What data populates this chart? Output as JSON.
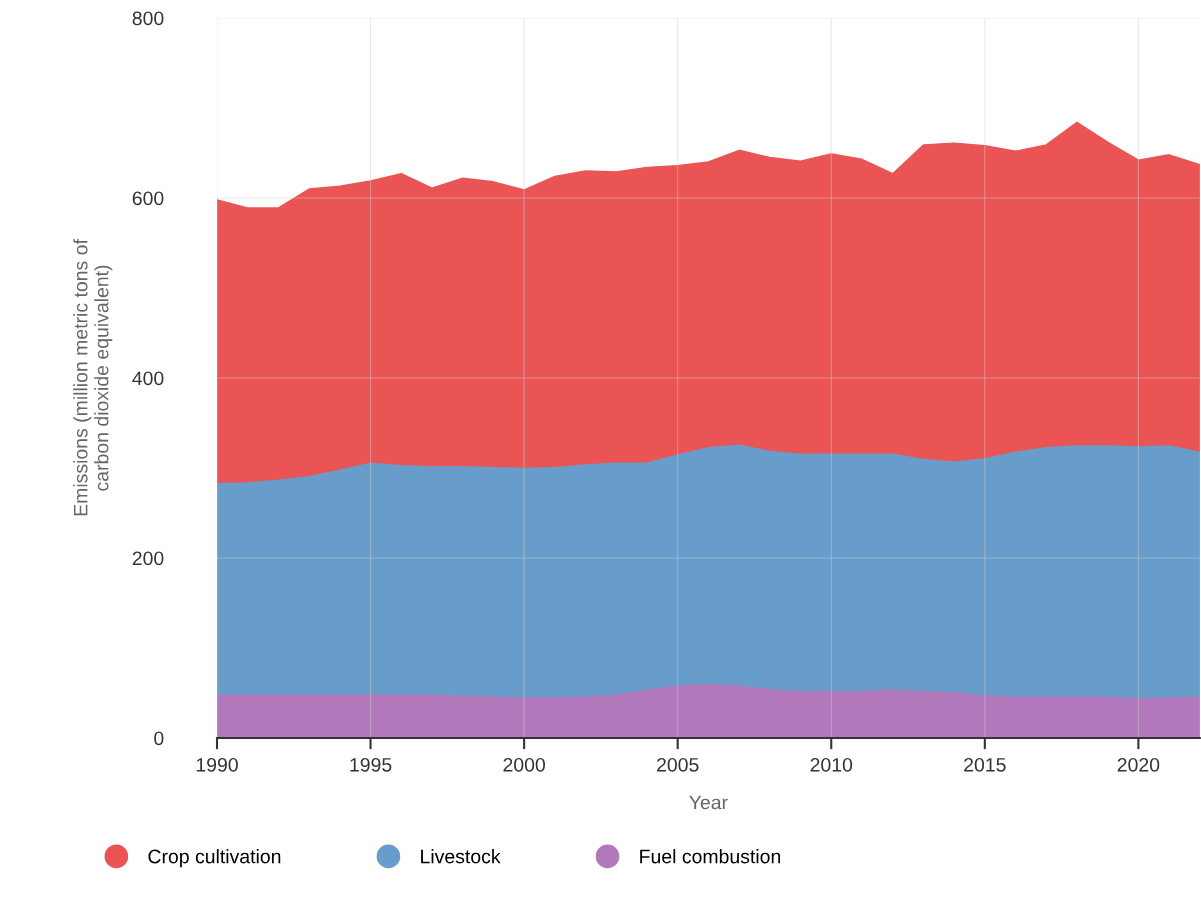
{
  "chart_data": {
    "type": "area",
    "stacked": true,
    "xlabel": "Year",
    "ylabel": "Emissions (million metric tons of\ncarbon dioxide equivalent)",
    "x": [
      1990,
      1991,
      1992,
      1993,
      1994,
      1995,
      1996,
      1997,
      1998,
      1999,
      2000,
      2001,
      2002,
      2003,
      2004,
      2005,
      2006,
      2007,
      2008,
      2009,
      2010,
      2011,
      2012,
      2013,
      2014,
      2015,
      2016,
      2017,
      2018,
      2019,
      2020,
      2021,
      2022
    ],
    "series": [
      {
        "name": "Fuel combustion",
        "color": "#b278bc",
        "values": [
          49,
          49,
          49,
          49,
          49,
          49,
          49,
          49,
          48,
          47,
          46,
          46,
          47,
          49,
          55,
          59,
          61,
          59,
          55,
          53,
          53,
          53,
          55,
          53,
          52,
          48,
          47,
          47,
          47,
          47,
          45,
          46,
          47
        ]
      },
      {
        "name": "Livestock",
        "color": "#689dcb",
        "values": [
          235,
          236,
          239,
          243,
          250,
          258,
          255,
          254,
          255,
          255,
          255,
          256,
          258,
          258,
          252,
          257,
          263,
          268,
          265,
          264,
          264,
          264,
          262,
          258,
          256,
          264,
          272,
          277,
          279,
          279,
          280,
          280,
          272
        ]
      },
      {
        "name": "Crop cultivation",
        "color": "#ea5455",
        "values": [
          314,
          304,
          301,
          318,
          314,
          312,
          323,
          308,
          319,
          316,
          308,
          322,
          325,
          322,
          327,
          320,
          316,
          326,
          325,
          324,
          332,
          326,
          310,
          348,
          353,
          346,
          333,
          335,
          358,
          336,
          317,
          322,
          318
        ]
      }
    ],
    "xlim": [
      1990,
      2022
    ],
    "xticks": [
      1990,
      1995,
      2000,
      2005,
      2010,
      2015,
      2020
    ],
    "ylim": [
      0,
      800
    ],
    "yticks": [
      0,
      200,
      400,
      600,
      800
    ],
    "grid": true,
    "legend": "bottom"
  }
}
